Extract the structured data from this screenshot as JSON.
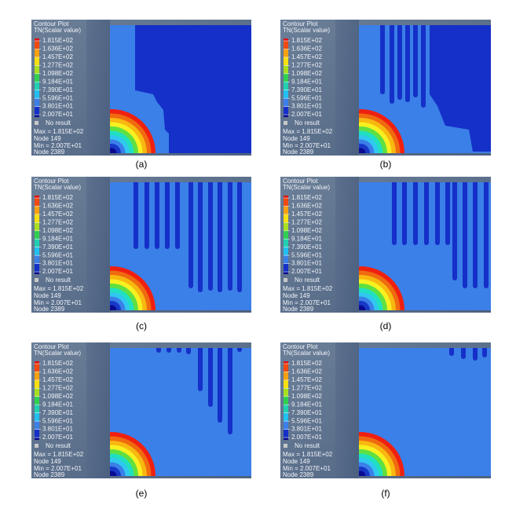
{
  "panels": [
    {
      "legend_title": "Contour Plot",
      "legend_subtitle": "TN(Scalar value)",
      "levels": [
        "1.815E+02",
        "1.636E+02",
        "1.457E+02",
        "1.277E+02",
        "1.098E+02",
        "9.184E+01",
        "7.390E+01",
        "5.596E+01",
        "3.801E+01",
        "2.007E+01"
      ],
      "no_result": "No result",
      "max": "Max = 1.815E+02",
      "max_node": "Node 149",
      "min": "Min = 2.007E+01",
      "min_node": "Node 2389",
      "caption": "(a)"
    },
    {
      "legend_title": "Contour Plot",
      "legend_subtitle": "TN(Scalar value)",
      "levels": [
        "1.815E+02",
        "1.636E+02",
        "1.457E+02",
        "1.277E+02",
        "1.098E+02",
        "9.184E+01",
        "7.390E+01",
        "5.596E+01",
        "3.801E+01",
        "2.007E+01"
      ],
      "no_result": "No result",
      "max": "Max = 1.815E+02",
      "max_node": "Node 149",
      "min": "Min = 2.007E+01",
      "min_node": "Node 2389",
      "caption": "(b)"
    },
    {
      "legend_title": "Contour Plot",
      "legend_subtitle": "TN(Scalar value)",
      "levels": [
        "1.815E+02",
        "1.636E+02",
        "1.457E+02",
        "1.277E+02",
        "1.098E+02",
        "9.184E+01",
        "7.390E+01",
        "5.596E+01",
        "3.801E+01",
        "2.007E+01"
      ],
      "no_result": "No result",
      "max": "Max = 1.815E+02",
      "max_node": "Node 149",
      "min": "Min = 2.007E+01",
      "min_node": "Node 2389",
      "caption": "(c)"
    },
    {
      "legend_title": "Contour Plot",
      "legend_subtitle": "TN(Scalar value)",
      "levels": [
        "1.815E+02",
        "1.636E+02",
        "1.457E+02",
        "1.277E+02",
        "1.098E+02",
        "9.184E+01",
        "7.390E+01",
        "5.596E+01",
        "3.801E+01",
        "2.007E+01"
      ],
      "no_result": "No result",
      "max": "Max = 1.815E+02",
      "max_node": "Node 149",
      "min": "Min = 2.007E+01",
      "min_node": "Node 2389",
      "caption": "(d)"
    },
    {
      "legend_title": "Contour Plot",
      "legend_subtitle": "TN(Scalar value)",
      "levels": [
        "1.815E+02",
        "1.636E+02",
        "1.457E+02",
        "1.277E+02",
        "1.098E+02",
        "9.184E+01",
        "7.390E+01",
        "5.596E+01",
        "3.801E+01",
        "2.007E+01"
      ],
      "no_result": "No result",
      "max": "Max = 1.815E+02",
      "max_node": "Node 149",
      "min": "Min = 2.007E+01",
      "min_node": "Node 2389",
      "caption": "(e)"
    },
    {
      "legend_title": "Contour Plot",
      "legend_subtitle": "TN(Scalar value)",
      "levels": [
        "1.815E+02",
        "1.636E+02",
        "1.457E+02",
        "1.277E+02",
        "1.098E+02",
        "9.184E+01",
        "7.390E+01",
        "5.596E+01",
        "3.801E+01",
        "2.007E+01"
      ],
      "no_result": "No result",
      "max": "Max = 1.815E+02",
      "max_node": "Node 149",
      "min": "Min = 2.007E+01",
      "min_node": "Node 2389",
      "caption": "(f)"
    }
  ]
}
